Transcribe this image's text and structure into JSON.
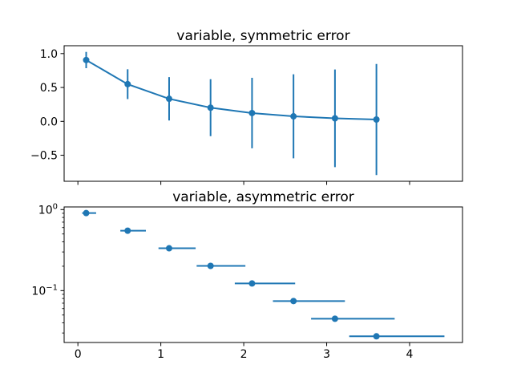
{
  "figure": {
    "background": "#ffffff",
    "accent_color": "#1f77b4",
    "axis_color": "#000000"
  },
  "chart_data": [
    {
      "type": "line",
      "title": "variable, symmetric error",
      "xlabel": "",
      "ylabel": "",
      "x": [
        0.1,
        0.6,
        1.1,
        1.6,
        2.1,
        2.6,
        3.1,
        3.6
      ],
      "y": [
        0.9048,
        0.5488,
        0.3329,
        0.2019,
        0.1225,
        0.0743,
        0.045,
        0.0273
      ],
      "yerr": [
        0.12,
        0.22,
        0.32,
        0.42,
        0.52,
        0.62,
        0.72,
        0.82
      ],
      "marker": "circle",
      "connect_line": true,
      "yscale": "linear",
      "grid": false,
      "legend": null,
      "xlim": [
        -0.166,
        4.638
      ],
      "ylim": [
        -0.884,
        1.116
      ],
      "xticks": [
        0,
        1,
        2,
        3,
        4
      ],
      "xtick_labels": [
        "0",
        "1",
        "2",
        "3",
        "4"
      ],
      "show_xtick_labels": false,
      "yticks": [
        1.0,
        0.5,
        0.0,
        -0.5
      ],
      "ytick_labels": [
        "1.0",
        "0.5",
        "0.0",
        "−0.5"
      ]
    },
    {
      "type": "scatter",
      "title": "variable, asymmetric error",
      "xlabel": "",
      "ylabel": "",
      "x": [
        0.1,
        0.6,
        1.1,
        1.6,
        2.1,
        2.6,
        3.1,
        3.6
      ],
      "y": [
        0.9048,
        0.5488,
        0.3329,
        0.2019,
        0.1225,
        0.0743,
        0.045,
        0.0273
      ],
      "xerr_lower": [
        0.048,
        0.088,
        0.128,
        0.168,
        0.208,
        0.248,
        0.288,
        0.328
      ],
      "xerr_upper": [
        0.12,
        0.22,
        0.32,
        0.42,
        0.52,
        0.62,
        0.72,
        0.82
      ],
      "marker": "circle",
      "connect_line": false,
      "yscale": "log",
      "grid": false,
      "legend": null,
      "xlim": [
        -0.166,
        4.638
      ],
      "ylim": [
        0.0229,
        1.078
      ],
      "xticks": [
        0,
        1,
        2,
        3,
        4
      ],
      "xtick_labels": [
        "0",
        "1",
        "2",
        "3",
        "4"
      ],
      "show_xtick_labels": true,
      "yticks": [
        1,
        0.1
      ],
      "ytick_labels": [
        {
          "mantissa": "10",
          "exponent": "0"
        },
        {
          "mantissa": "10",
          "exponent": "−1"
        }
      ],
      "yminorticks": [
        0.9,
        0.8,
        0.7,
        0.6,
        0.5,
        0.4,
        0.3,
        0.2,
        0.09,
        0.08,
        0.07,
        0.06,
        0.05,
        0.04,
        0.03
      ]
    }
  ]
}
